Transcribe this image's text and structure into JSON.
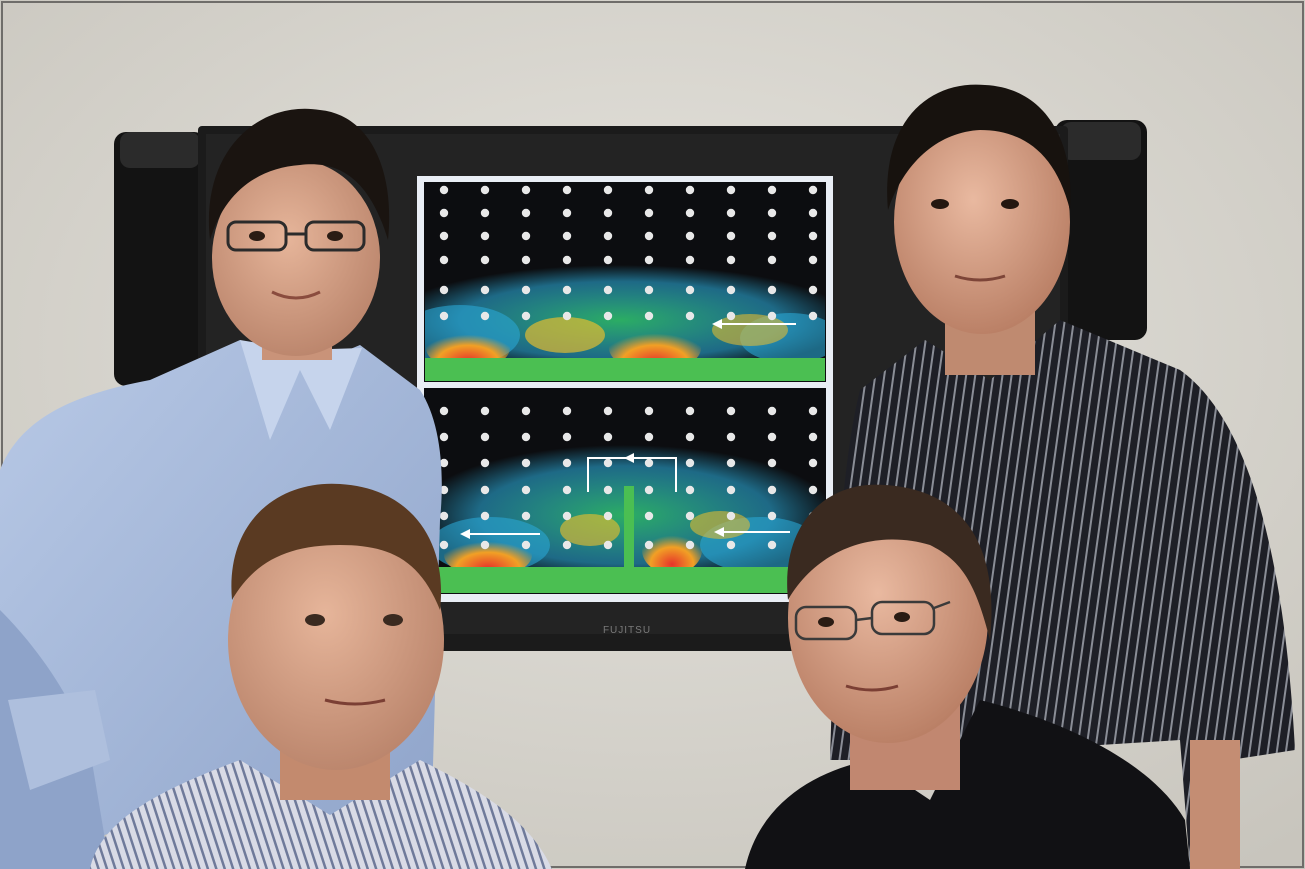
{
  "photo": {
    "monitor_brand": "FUJITSU",
    "palette": {
      "wall": "#dcdad4",
      "wall_shadow": "#c9c6bf",
      "monitor_frame": "#1b1b1b",
      "speaker": "#121212",
      "screen_bg": "#0c0d10",
      "screen_border": "#e9eef5",
      "substrate": "#4bbf52",
      "field_green": "#2fbf6c",
      "field_cyan": "#2aa7d4",
      "field_orange": "#f1a025",
      "field_red": "#e6342a",
      "lattice_dot": "#e8e8e8",
      "arrow": "#ffffff",
      "shirt_blue": "#9fb4d6",
      "shirt_stripe": "#2b2c33",
      "shirt_black": "#111114",
      "skin": "#d8a58a",
      "hair": "#1a1410"
    }
  }
}
